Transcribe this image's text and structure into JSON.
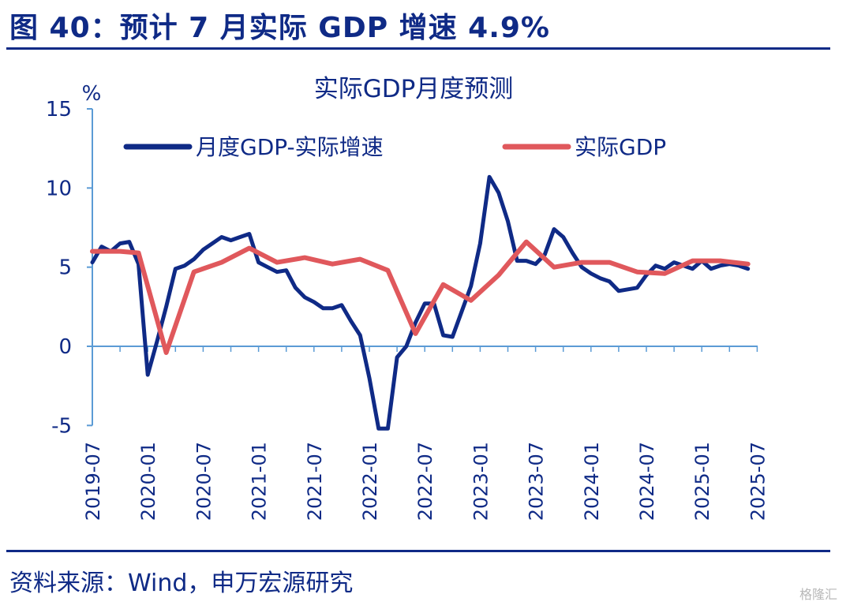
{
  "header": {
    "title": "图 40：预计 7 月实际 GDP 增速 4.9%"
  },
  "footer": {
    "source": "资料来源：Wind，申万宏源研究",
    "watermark": "格隆汇"
  },
  "chart_data": {
    "type": "line",
    "title": "实际GDP月度预测",
    "ylabel": "%",
    "ylim": [
      -5,
      15
    ],
    "yticks": [
      -5,
      0,
      5,
      10,
      15
    ],
    "x_tick_labels": [
      "2019-07",
      "2020-01",
      "2020-07",
      "2021-01",
      "2021-07",
      "2022-01",
      "2022-07",
      "2023-01",
      "2023-07",
      "2024-01",
      "2024-07",
      "2025-01",
      "2025-07"
    ],
    "legend_position": "top",
    "series": [
      {
        "name": "月度GDP-实际增速",
        "color": "#0f2a86",
        "points": [
          [
            "2019-07",
            5.3
          ],
          [
            "2019-08",
            6.3
          ],
          [
            "2019-09",
            6.0
          ],
          [
            "2019-10",
            6.5
          ],
          [
            "2019-11",
            6.6
          ],
          [
            "2019-12",
            5.2
          ],
          [
            "2020-01",
            -1.8
          ],
          [
            "2020-02",
            0.3
          ],
          [
            "2020-03",
            2.5
          ],
          [
            "2020-04",
            4.9
          ],
          [
            "2020-05",
            5.1
          ],
          [
            "2020-06",
            5.5
          ],
          [
            "2020-07",
            6.1
          ],
          [
            "2020-08",
            6.5
          ],
          [
            "2020-09",
            6.9
          ],
          [
            "2020-10",
            6.7
          ],
          [
            "2020-11",
            6.9
          ],
          [
            "2020-12",
            7.1
          ],
          [
            "2021-01",
            5.3
          ],
          [
            "2021-02",
            5.0
          ],
          [
            "2021-03",
            4.7
          ],
          [
            "2021-04",
            4.8
          ],
          [
            "2021-05",
            3.7
          ],
          [
            "2021-06",
            3.1
          ],
          [
            "2021-07",
            2.8
          ],
          [
            "2021-08",
            2.4
          ],
          [
            "2021-09",
            2.4
          ],
          [
            "2021-10",
            2.6
          ],
          [
            "2021-11",
            1.6
          ],
          [
            "2021-12",
            0.7
          ],
          [
            "2022-01",
            -2.0
          ],
          [
            "2022-02",
            -5.2
          ],
          [
            "2022-03",
            -5.2
          ],
          [
            "2022-04",
            -0.7
          ],
          [
            "2022-05",
            0.0
          ],
          [
            "2022-06",
            1.5
          ],
          [
            "2022-07",
            2.7
          ],
          [
            "2022-08",
            2.7
          ],
          [
            "2022-09",
            0.7
          ],
          [
            "2022-10",
            0.6
          ],
          [
            "2022-11",
            2.2
          ],
          [
            "2022-12",
            3.8
          ],
          [
            "2023-01",
            6.5
          ],
          [
            "2023-02",
            10.7
          ],
          [
            "2023-03",
            9.7
          ],
          [
            "2023-04",
            7.9
          ],
          [
            "2023-05",
            5.4
          ],
          [
            "2023-06",
            5.4
          ],
          [
            "2023-07",
            5.2
          ],
          [
            "2023-08",
            5.8
          ],
          [
            "2023-09",
            7.4
          ],
          [
            "2023-10",
            6.9
          ],
          [
            "2023-11",
            5.9
          ],
          [
            "2023-12",
            5.0
          ],
          [
            "2024-01",
            4.6
          ],
          [
            "2024-02",
            4.3
          ],
          [
            "2024-03",
            4.1
          ],
          [
            "2024-04",
            3.5
          ],
          [
            "2024-05",
            3.6
          ],
          [
            "2024-06",
            3.7
          ],
          [
            "2024-07",
            4.5
          ],
          [
            "2024-08",
            5.1
          ],
          [
            "2024-09",
            4.9
          ],
          [
            "2024-10",
            5.3
          ],
          [
            "2024-11",
            5.1
          ],
          [
            "2024-12",
            4.9
          ],
          [
            "2025-01",
            5.4
          ],
          [
            "2025-02",
            4.9
          ],
          [
            "2025-03",
            5.1
          ],
          [
            "2025-04",
            5.2
          ],
          [
            "2025-05",
            5.1
          ],
          [
            "2025-06",
            4.9
          ]
        ]
      },
      {
        "name": "实际GDP",
        "color": "#e0585c",
        "points": [
          [
            "2019-07",
            6.0
          ],
          [
            "2019-10",
            6.0
          ],
          [
            "2019-12",
            5.9
          ],
          [
            "2020-03",
            -0.4
          ],
          [
            "2020-06",
            4.7
          ],
          [
            "2020-09",
            5.3
          ],
          [
            "2020-12",
            6.2
          ],
          [
            "2021-03",
            5.3
          ],
          [
            "2021-06",
            5.6
          ],
          [
            "2021-09",
            5.2
          ],
          [
            "2021-12",
            5.5
          ],
          [
            "2022-03",
            4.8
          ],
          [
            "2022-06",
            0.8
          ],
          [
            "2022-09",
            3.9
          ],
          [
            "2022-12",
            2.9
          ],
          [
            "2023-03",
            4.5
          ],
          [
            "2023-06",
            6.6
          ],
          [
            "2023-09",
            5.0
          ],
          [
            "2023-12",
            5.3
          ],
          [
            "2024-03",
            5.3
          ],
          [
            "2024-06",
            4.7
          ],
          [
            "2024-09",
            4.6
          ],
          [
            "2024-12",
            5.4
          ],
          [
            "2025-03",
            5.4
          ],
          [
            "2025-06",
            5.2
          ]
        ]
      }
    ]
  }
}
